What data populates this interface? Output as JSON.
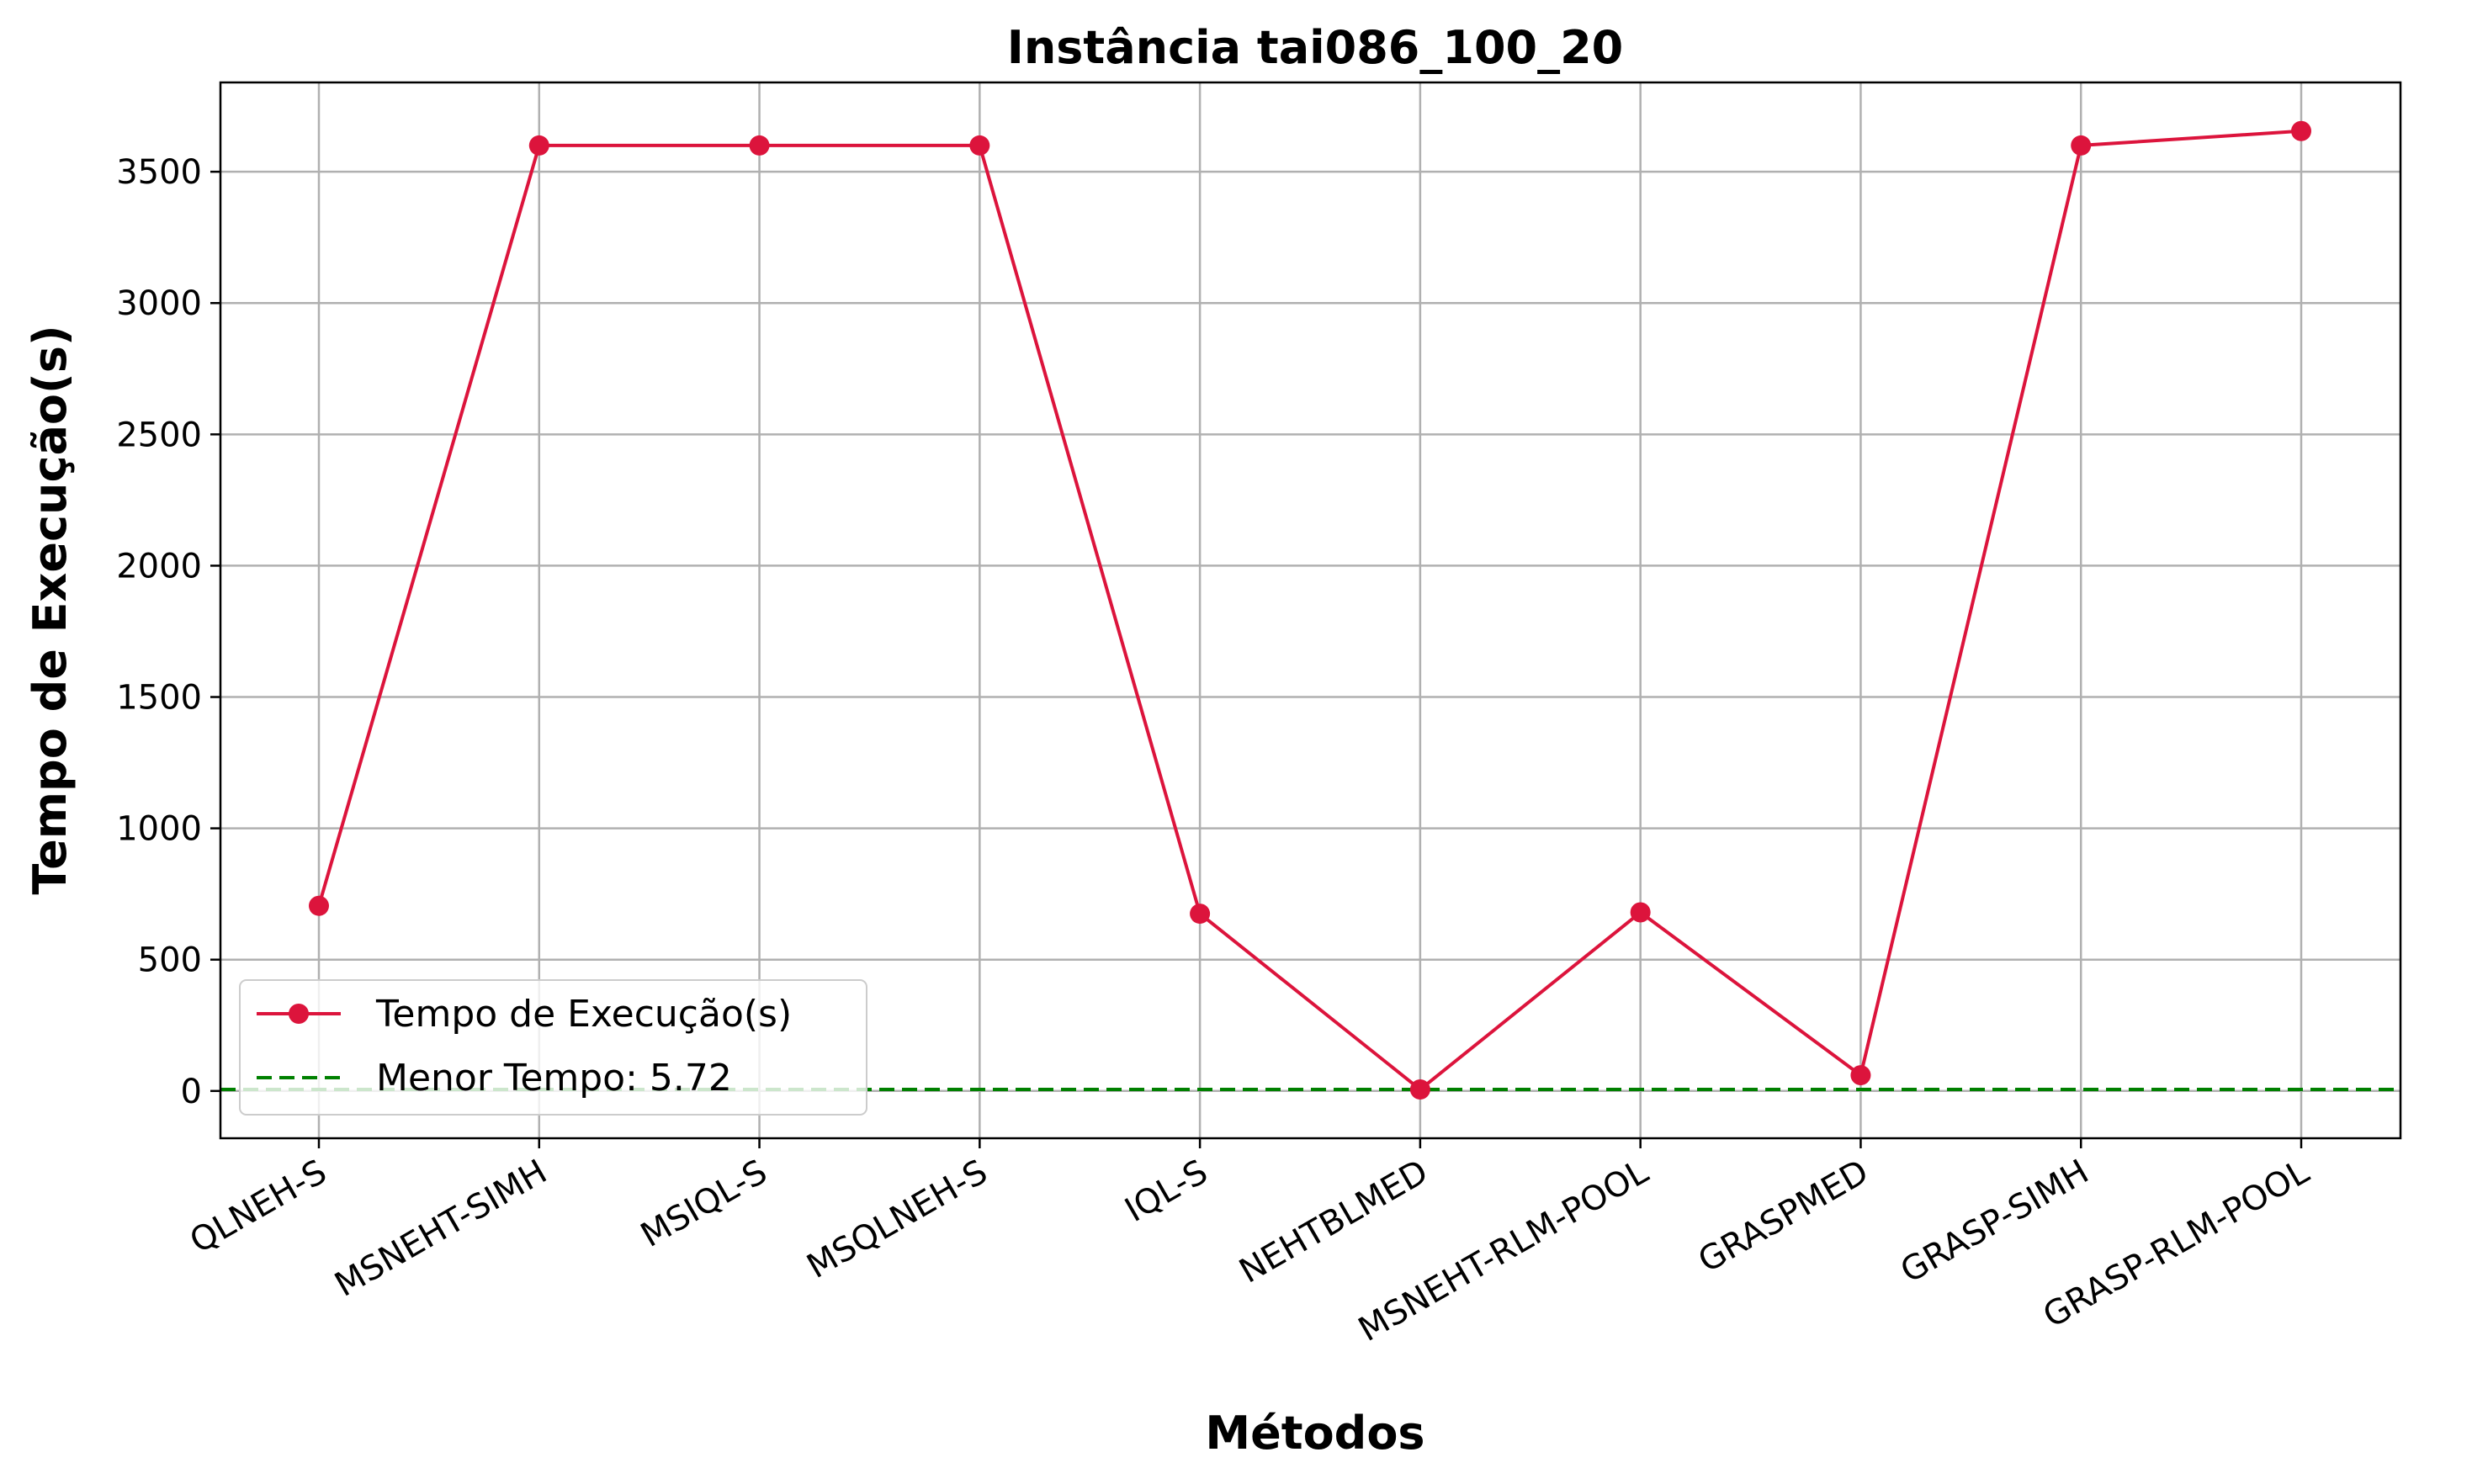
{
  "chart_data": {
    "type": "line",
    "title": "Instância tai086_100_20",
    "xlabel": "Métodos",
    "ylabel": "Tempo de Execução(s)",
    "categories": [
      "QLNEH-S",
      "MSNEHT-SIMH",
      "MSIQL-S",
      "MSQLNEH-S",
      "IQL-S",
      "NEHTBLMED",
      "MSNEHT-RLM-POOL",
      "GRASPMED",
      "GRASP-SIMH",
      "GRASP-RLM-POOL"
    ],
    "series": [
      {
        "name": "Tempo de Execução(s)",
        "color": "#dc143c",
        "values": [
          705,
          3600,
          3600,
          3600,
          675,
          5.72,
          680,
          60,
          3600,
          3655
        ]
      }
    ],
    "reference_line": {
      "label": "Menor Tempo: 5.72",
      "value": 5.72,
      "color": "#008000",
      "style": "dashed"
    },
    "ylim": [
      -180,
      3840
    ],
    "yticks": [
      0,
      500,
      1000,
      1500,
      2000,
      2500,
      3000,
      3500
    ],
    "grid": true,
    "legend_position": "lower-left"
  }
}
